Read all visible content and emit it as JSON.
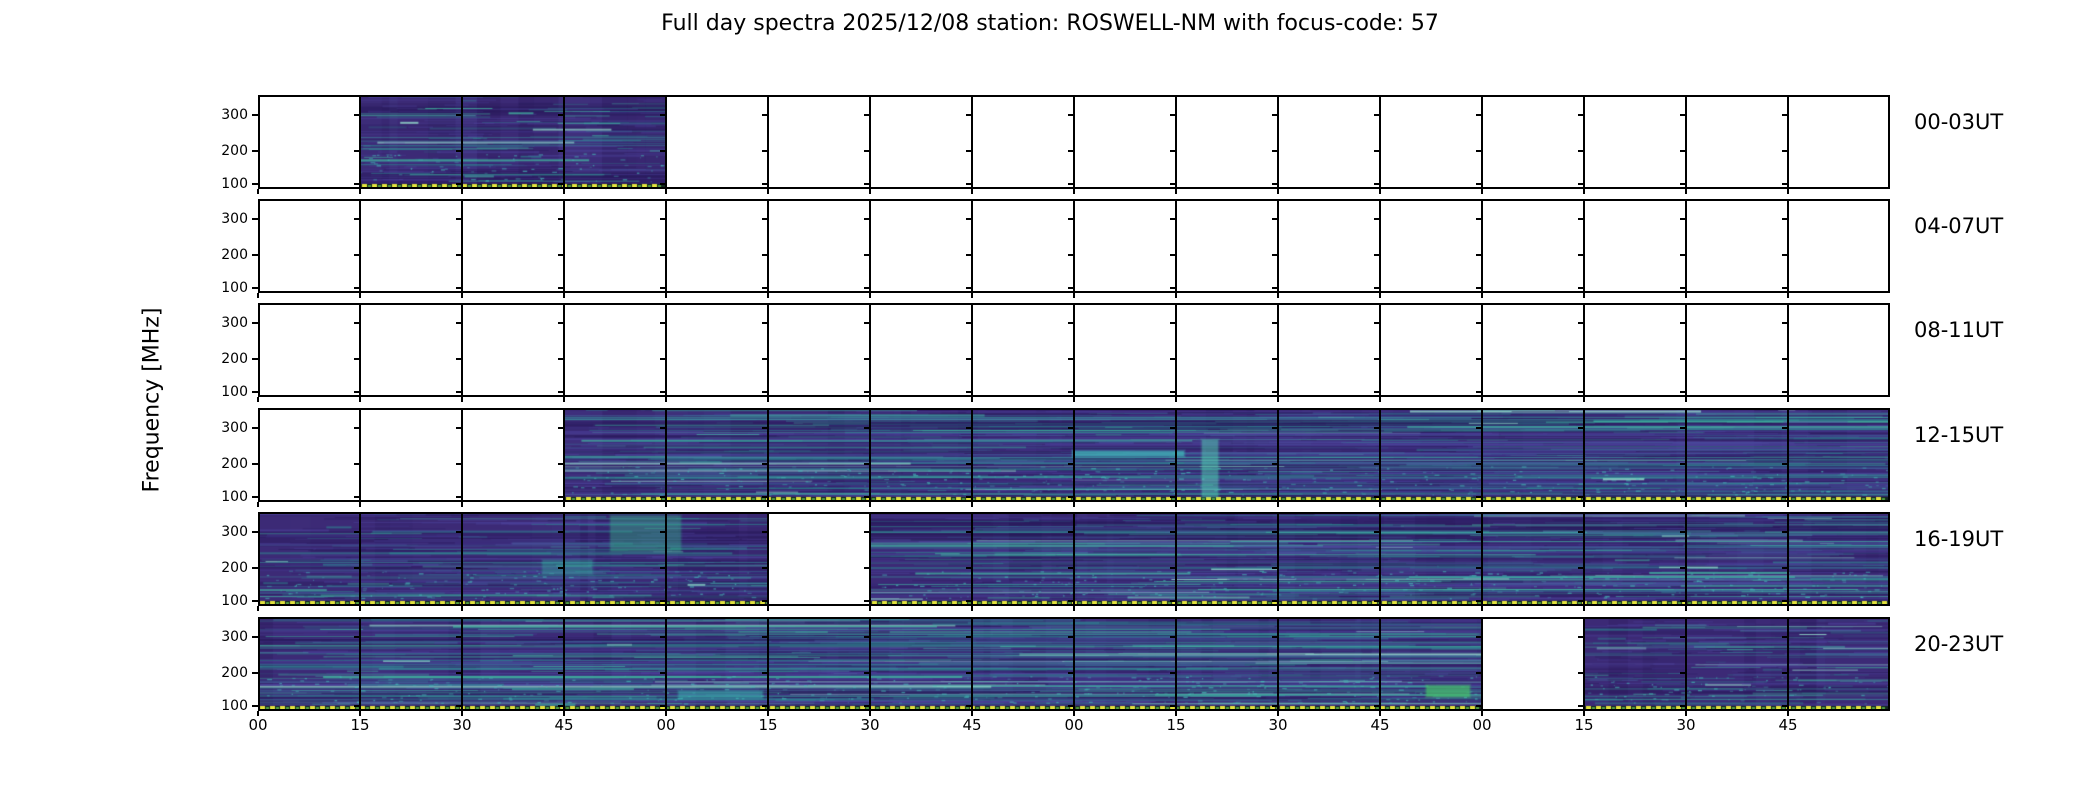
{
  "chart_data": {
    "type": "heatmap",
    "kind": "full-day-radio-spectrogram-grid",
    "title": "Full day spectra 2025/12/08 station: ROSWELL-NM with focus-code: 57",
    "date": "2025/12/08",
    "station": "ROSWELL-NM",
    "focus_code": "57",
    "ylabel": "Frequency [MHz]",
    "y_ticks": [
      "300",
      "200",
      "100"
    ],
    "y_range_mhz": [
      85,
      360
    ],
    "x_tick_labels": [
      "00",
      "15",
      "30",
      "45",
      "00",
      "15",
      "30",
      "45",
      "00",
      "15",
      "30",
      "45",
      "00",
      "15",
      "30",
      "45"
    ],
    "minutes_per_row": 240,
    "minutes_per_cell": 15,
    "grid": "16 cells of 15 minutes per row; white cell = no data",
    "rows": [
      {
        "label": "00-03UT",
        "filled_minutes": [
          [
            15,
            60
          ]
        ]
      },
      {
        "label": "04-07UT",
        "filled_minutes": []
      },
      {
        "label": "08-11UT",
        "filled_minutes": []
      },
      {
        "label": "12-15UT",
        "filled_minutes": [
          [
            45,
            240
          ]
        ]
      },
      {
        "label": "16-19UT",
        "filled_minutes": [
          [
            0,
            75
          ],
          [
            90,
            240
          ]
        ]
      },
      {
        "label": "20-23UT",
        "filled_minutes": [
          [
            0,
            180
          ],
          [
            195,
            240
          ]
        ]
      }
    ],
    "legend": "none",
    "colors": {
      "spectro_base": "#3c2a76",
      "streak_light_purple": "#4f46a0",
      "streak_dark": "#2a1c5e",
      "streak_teal": "#2e8f94",
      "streak_bright_teal": "#43c1a4",
      "streak_pale_cyan": "#96e1cd",
      "dotted_line_yellow": "#e2e23c",
      "dotted_line_green": "#4f9f3f",
      "dotted_line_bg": "#13271f",
      "border": "#000000",
      "empty_cell": "#ffffff"
    },
    "hotspots": [
      {
        "row": 3,
        "m0": 120,
        "m1": 136,
        "f": 0.47,
        "h": 3,
        "color": "#3fc8c0",
        "alpha": 0.75
      },
      {
        "row": 3,
        "m0": 139,
        "m1": 141,
        "f": 0.35,
        "h": 55,
        "color": "#54d2b4",
        "alpha": 0.55
      },
      {
        "row": 4,
        "m0": 52,
        "m1": 62,
        "f": 0.05,
        "h": 34,
        "color": "#35b087",
        "alpha": 0.45
      },
      {
        "row": 4,
        "m0": 42,
        "m1": 49,
        "f": 0.52,
        "h": 12,
        "color": "#35b0a0",
        "alpha": 0.4
      },
      {
        "row": 5,
        "m0": 172,
        "m1": 178,
        "f": 0.74,
        "h": 9,
        "color": "#46c06a",
        "alpha": 0.85
      },
      {
        "row": 5,
        "m0": 62,
        "m1": 74,
        "f": 0.8,
        "h": 5,
        "color": "#3ab3b3",
        "alpha": 0.6
      }
    ]
  }
}
